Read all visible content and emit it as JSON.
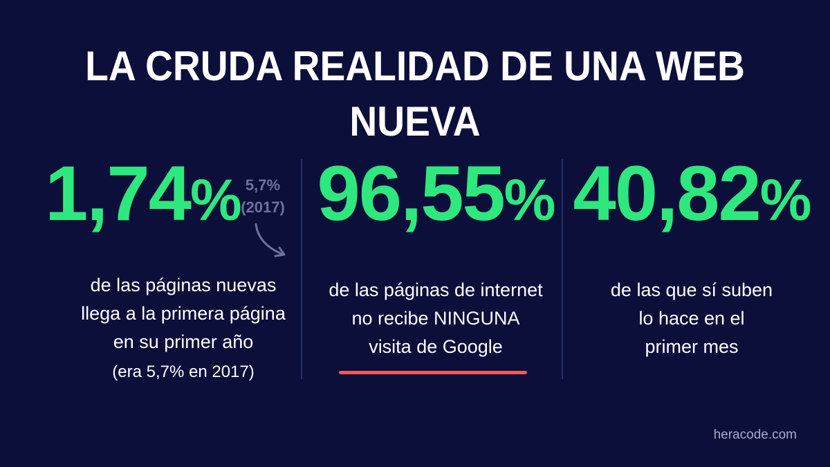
{
  "title": "LA CRUDA REALIDAD DE UNA WEB NUEVA",
  "stats": [
    {
      "number": "1,74",
      "unit": "%",
      "lines": [
        "de las páginas nuevas",
        "llega a la primera página",
        "en su primer año"
      ],
      "note": "(era 5,7% en 2017)",
      "previous_value": "5,7%",
      "previous_year": "(2017)"
    },
    {
      "number": "96,55",
      "unit": "%",
      "lines": [
        "de las páginas de internet",
        "no recibe NINGUNA",
        "visita de Google"
      ]
    },
    {
      "number": "40,82",
      "unit": "%",
      "lines": [
        "de las que sí suben",
        "lo hace en el",
        "primer mes"
      ]
    }
  ],
  "brand": "heracode.com",
  "colors": {
    "background": "#0c0f3a",
    "accent_green": "#2ee87e",
    "underline_red": "#f25a59",
    "muted": "#6f7299"
  }
}
